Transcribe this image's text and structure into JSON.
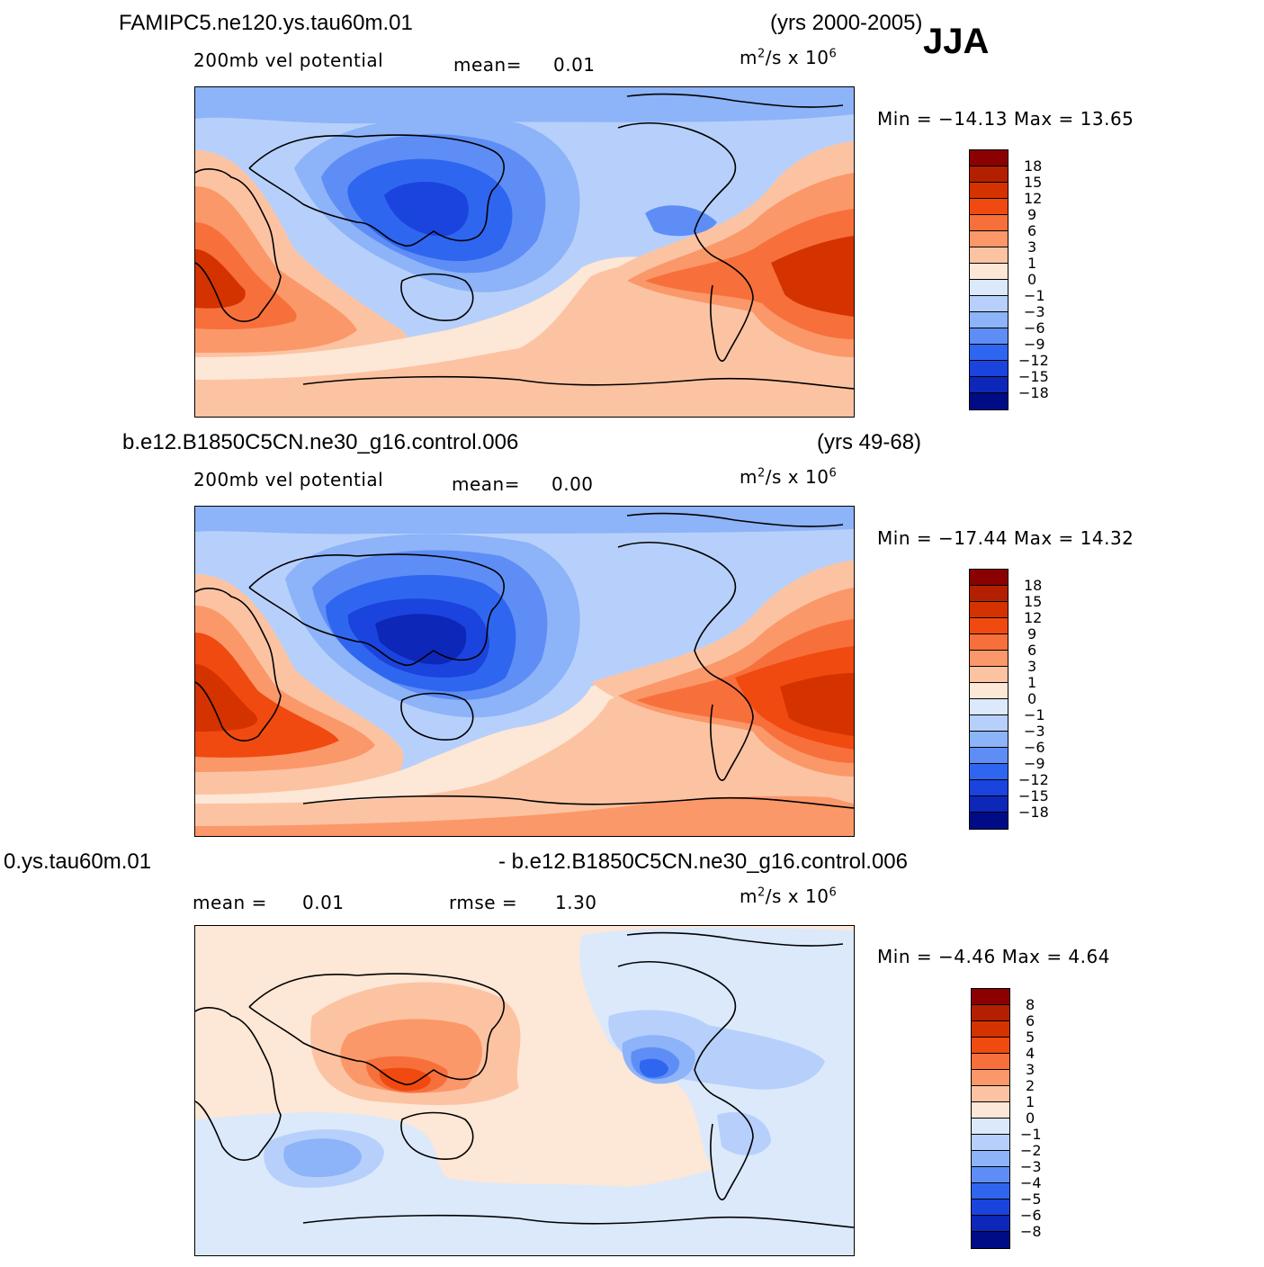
{
  "season": "JJA",
  "panels": [
    {
      "case_name": "FAMIPC5.ne120.ys.tau60m.01",
      "years": "(yrs 2000-2005)",
      "variable": "200mb vel potential",
      "mean_label": "mean=",
      "mean_value": "0.01",
      "units_prefix": "m",
      "units_exp": "2",
      "units_mid": "/s x 10",
      "units_scale_exp": "6",
      "minmax_text": "Min = −14.13 Max = 13.65",
      "colorbar_labels": [
        "18",
        "15",
        "12",
        "9",
        "6",
        "3",
        "1",
        "0",
        "−1",
        "−3",
        "−6",
        "−9",
        "−12",
        "−15",
        "−18"
      ]
    },
    {
      "case_name": "b.e12.B1850C5CN.ne30_g16.control.006",
      "years": "(yrs 49-68)",
      "variable": "200mb vel potential",
      "mean_label": "mean=",
      "mean_value": "0.00",
      "units_prefix": "m",
      "units_exp": "2",
      "units_mid": "/s x 10",
      "units_scale_exp": "6",
      "minmax_text": "Min = −17.44 Max = 14.32",
      "colorbar_labels": [
        "18",
        "15",
        "12",
        "9",
        "6",
        "3",
        "1",
        "0",
        "−1",
        "−3",
        "−6",
        "−9",
        "−12",
        "−15",
        "−18"
      ]
    },
    {
      "case_left": "0.ys.tau60m.01",
      "case_right": "- b.e12.B1850C5CN.ne30_g16.control.006",
      "mean_label": "mean =",
      "mean_value": "0.01",
      "rmse_label": "rmse =",
      "rmse_value": "1.30",
      "units_prefix": "m",
      "units_exp": "2",
      "units_mid": "/s x 10",
      "units_scale_exp": "6",
      "minmax_text": "Min = −4.46 Max = 4.64",
      "colorbar_labels": [
        "8",
        "6",
        "5",
        "4",
        "3",
        "2",
        "1",
        "0",
        "−1",
        "−2",
        "−3",
        "−4",
        "−5",
        "−6",
        "−8"
      ]
    }
  ],
  "colors": {
    "scale": [
      "#8b0000",
      "#b22000",
      "#d43300",
      "#f04a10",
      "#f7703c",
      "#fb9869",
      "#fcc3a3",
      "#fde7d6",
      "#dbe9fb",
      "#b7d0fb",
      "#8db3f8",
      "#5e8ef5",
      "#2f66f0",
      "#1a44dd",
      "#0d27b8",
      "#000c85"
    ]
  }
}
